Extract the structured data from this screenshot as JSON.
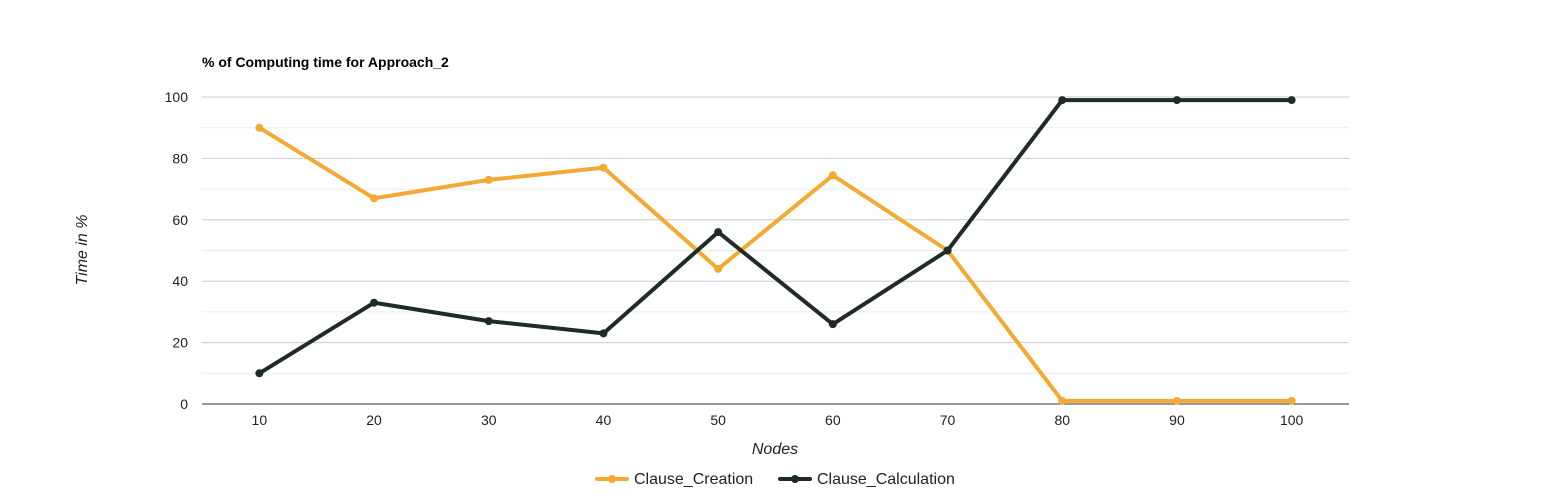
{
  "chart_data": {
    "type": "line",
    "title": "% of Computing time for Approach_2",
    "xlabel": "Nodes",
    "ylabel": "Time in %",
    "categories": [
      "10",
      "20",
      "30",
      "40",
      "50",
      "60",
      "70",
      "80",
      "90",
      "100"
    ],
    "ylim": [
      0,
      100
    ],
    "yticks": [
      "0",
      "20",
      "40",
      "60",
      "80",
      "100"
    ],
    "grid": true,
    "legend_position": "bottom",
    "series": [
      {
        "name": "Clause_Creation",
        "color": "#f4a933",
        "values": [
          90,
          67,
          73,
          77,
          44,
          74.5,
          50,
          1,
          1,
          1
        ]
      },
      {
        "name": "Clause_Calculation",
        "color": "#1f2b27",
        "values": [
          10,
          33,
          27,
          23,
          56,
          26,
          50,
          99,
          99,
          99
        ]
      }
    ]
  }
}
